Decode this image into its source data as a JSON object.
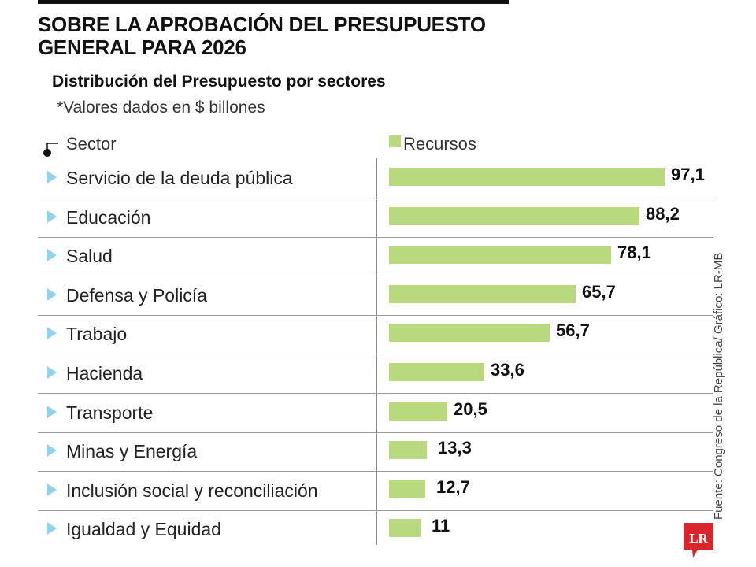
{
  "header": {
    "title_line1": "SOBRE LA APROBACIÓN DEL PRESUPUESTO",
    "title_line2": "GENERAL PARA 2026",
    "subtitle": "Distribución del Presupuesto por sectores",
    "note": "*Valores dados en $ billones"
  },
  "columns": {
    "sector": "Sector",
    "legend": "Recursos"
  },
  "colors": {
    "bar": "#b8d97d",
    "arrow": "#8fd3ec",
    "logo": "#d8262d"
  },
  "footer": {
    "source": "Fuente: Congreso de la República/ Gráfico: LR-MB",
    "logo_text": "LR"
  },
  "chart_data": {
    "type": "bar",
    "orientation": "horizontal",
    "title": "Distribución del Presupuesto por sectores",
    "subtitle": "*Valores dados en $ billones",
    "xlabel": "",
    "ylabel": "Sector",
    "legend": [
      "Recursos"
    ],
    "legend_position": "top",
    "grid": false,
    "xlim": [
      0,
      100
    ],
    "categories": [
      "Servicio de la deuda pública",
      "Educación",
      "Salud",
      "Defensa y Policía",
      "Trabajo",
      "Hacienda",
      "Transporte",
      "Minas y Energía",
      "Inclusión social y reconciliación",
      "Igualdad y Equidad"
    ],
    "values": [
      97.1,
      88.2,
      78.1,
      65.7,
      56.7,
      33.6,
      20.5,
      13.3,
      12.7,
      11
    ],
    "labels": [
      "97,1",
      "88,2",
      "78,1",
      "65,7",
      "56,7",
      "33,6",
      "20,5",
      "13,3",
      "12,7",
      "11"
    ]
  }
}
